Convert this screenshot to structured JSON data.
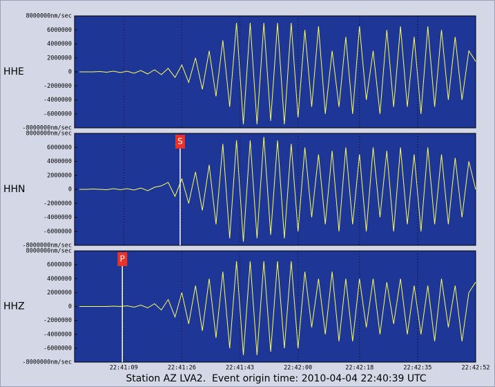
{
  "chart_data": [
    {
      "type": "line",
      "name": "HHE",
      "ylim": [
        -8000000,
        8000000
      ],
      "yticks": [
        {
          "value": -8000000,
          "label": "-8000000nm/sec"
        },
        -6000000,
        -4000000,
        -2000000,
        0,
        2000000,
        4000000,
        6000000,
        {
          "value": 8000000,
          "label": "8000000nm/sec"
        }
      ],
      "x": [
        56,
        58,
        60,
        62,
        64,
        66,
        68,
        70,
        72,
        74,
        76,
        78,
        80,
        82,
        84,
        86,
        88,
        90,
        92,
        94,
        96,
        98,
        100,
        102,
        104,
        106,
        108,
        110,
        112,
        114,
        116,
        118,
        120,
        122,
        124,
        126,
        128,
        130,
        132,
        134,
        136,
        138,
        140,
        142,
        144,
        146,
        148,
        150,
        152,
        154,
        156,
        158,
        160,
        162,
        164,
        166,
        168,
        170,
        172
      ],
      "series": [
        {
          "color": "#ffff5a",
          "values": [
            0,
            0,
            0,
            50000,
            -50000,
            100000,
            -100000,
            100000,
            -200000,
            200000,
            -300000,
            300000,
            -400000,
            500000,
            -800000,
            1000000,
            -1500000,
            2000000,
            -2500000,
            3000000,
            -3500000,
            4500000,
            -5000000,
            7000000,
            -7500000,
            7000000,
            -7500000,
            7000000,
            -7000000,
            7000000,
            -7500000,
            7000000,
            -6500000,
            6000000,
            -5000000,
            6500000,
            -6000000,
            3000000,
            -5000000,
            5000000,
            -6000000,
            6500000,
            -4000000,
            3000000,
            -6000000,
            6000000,
            -5000000,
            6500000,
            -5000000,
            5000000,
            -6000000,
            6500000,
            -5000000,
            6000000,
            -4000000,
            5000000,
            -4000000,
            3000000,
            1500000
          ]
        }
      ]
    },
    {
      "type": "line",
      "name": "HHN",
      "ylim": [
        -8000000,
        8000000
      ],
      "yticks": [
        {
          "value": -8000000,
          "label": "-8000000nm/sec"
        },
        -6000000,
        -4000000,
        -2000000,
        0,
        2000000,
        4000000,
        6000000,
        {
          "value": 8000000,
          "label": "8000000nm/sec"
        }
      ],
      "x": [
        56,
        58,
        60,
        62,
        64,
        66,
        68,
        70,
        72,
        74,
        76,
        78,
        80,
        82,
        84,
        86,
        88,
        90,
        92,
        94,
        96,
        98,
        100,
        102,
        104,
        106,
        108,
        110,
        112,
        114,
        116,
        118,
        120,
        122,
        124,
        126,
        128,
        130,
        132,
        134,
        136,
        138,
        140,
        142,
        144,
        146,
        148,
        150,
        152,
        154,
        156,
        158,
        160,
        162,
        164,
        166,
        168,
        170,
        172
      ],
      "series": [
        {
          "color": "#ffff5a",
          "values": [
            0,
            0,
            50000,
            0,
            -50000,
            100000,
            -50000,
            100000,
            -100000,
            200000,
            -200000,
            300000,
            500000,
            1000000,
            -1000000,
            1500000,
            -2000000,
            2500000,
            -3000000,
            3500000,
            -5000000,
            6500000,
            -7000000,
            7000000,
            -7500000,
            7000000,
            -7000000,
            7500000,
            -6500000,
            7000000,
            -7000000,
            6500000,
            -6000000,
            6000000,
            -4000000,
            5000000,
            -5000000,
            5500000,
            -6000000,
            6000000,
            -5000000,
            5000000,
            -6000000,
            6000000,
            -4000000,
            5500000,
            -6000000,
            6000000,
            -5000000,
            5000000,
            -6000000,
            6000000,
            -5000000,
            5000000,
            -5000000,
            4500000,
            -4000000,
            4000000,
            0
          ]
        }
      ],
      "annotations": [
        {
          "label": "S",
          "x": 85.5
        }
      ]
    },
    {
      "type": "line",
      "name": "HHZ",
      "ylim": [
        -8000000,
        8000000
      ],
      "yticks": [
        {
          "value": -8000000,
          "label": "-8000000nm/sec"
        },
        -6000000,
        -4000000,
        -2000000,
        0,
        2000000,
        4000000,
        6000000,
        {
          "value": 8000000,
          "label": "8000000nm/sec"
        }
      ],
      "x": [
        56,
        58,
        60,
        62,
        64,
        66,
        68,
        70,
        72,
        74,
        76,
        78,
        80,
        82,
        84,
        86,
        88,
        90,
        92,
        94,
        96,
        98,
        100,
        102,
        104,
        106,
        108,
        110,
        112,
        114,
        116,
        118,
        120,
        122,
        124,
        126,
        128,
        130,
        132,
        134,
        136,
        138,
        140,
        142,
        144,
        146,
        148,
        150,
        152,
        154,
        156,
        158,
        160,
        162,
        164,
        166,
        168,
        170,
        172
      ],
      "series": [
        {
          "color": "#ffff5a",
          "values": [
            0,
            0,
            0,
            0,
            0,
            50000,
            0,
            100000,
            -100000,
            200000,
            -200000,
            400000,
            -500000,
            1000000,
            -1500000,
            2000000,
            -2500000,
            3000000,
            -3500000,
            4000000,
            -4500000,
            5000000,
            -6000000,
            6500000,
            -7000000,
            6500000,
            -7000000,
            6500000,
            -6500000,
            6500000,
            -6000000,
            6500000,
            -6000000,
            5000000,
            -3000000,
            4000000,
            -4000000,
            5000000,
            -5000000,
            4000000,
            -5000000,
            4000000,
            -3000000,
            4000000,
            -4000000,
            3500000,
            -2500000,
            4000000,
            -4000000,
            3000000,
            -4000000,
            3000000,
            -5000000,
            4000000,
            -3000000,
            3000000,
            -5000000,
            2000000,
            3500000
          ]
        }
      ],
      "annotations": [
        {
          "label": "P",
          "x": 68.6
        }
      ]
    }
  ],
  "x_axis": {
    "xlim": [
      54.6,
      172
    ],
    "xticks": [
      {
        "value": 69,
        "label": "22:41:09"
      },
      {
        "value": 86,
        "label": "22:41:26"
      },
      {
        "value": 103,
        "label": "22:41:43"
      },
      {
        "value": 120,
        "label": "22:42:00"
      },
      {
        "value": 138,
        "label": "22:42:18"
      },
      {
        "value": 155,
        "label": "22:42:35"
      },
      {
        "value": 172,
        "label": "22:42:52"
      }
    ]
  },
  "caption": "Station AZ LVA2.  Event origin time: 2010-04-04 22:40:39 UTC"
}
